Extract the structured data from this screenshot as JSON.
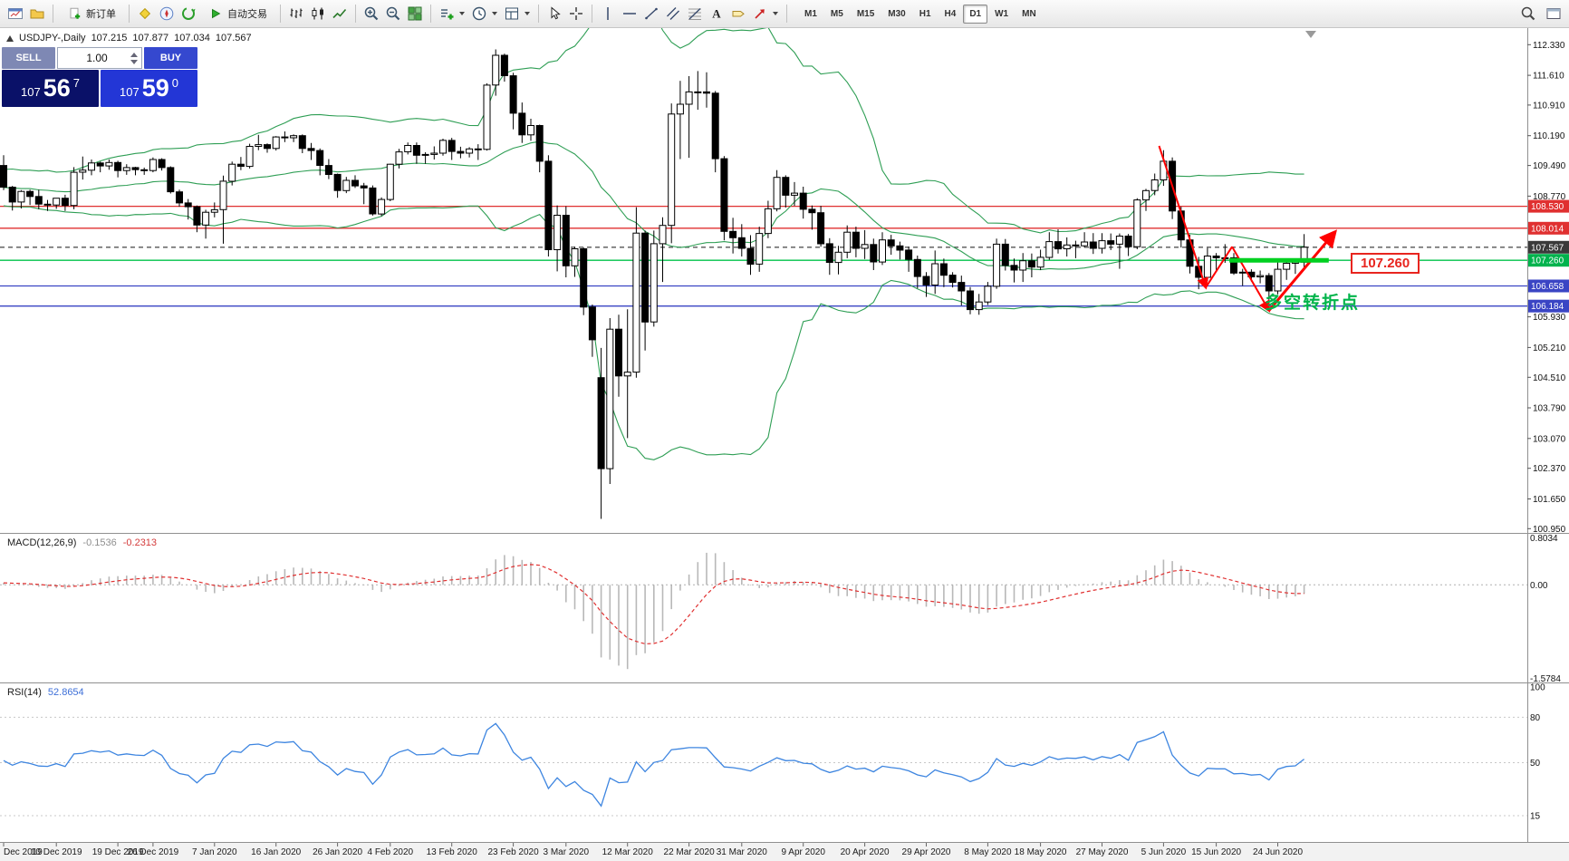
{
  "toolbar": {
    "new_order_label": "新订单",
    "auto_trading_label": "自动交易",
    "timeframes": [
      "M1",
      "M5",
      "M15",
      "M30",
      "H1",
      "H4",
      "D1",
      "W1",
      "MN"
    ],
    "active_timeframe": "D1"
  },
  "chart_header": {
    "symbol_period": "USDJPY-,Daily",
    "open": "107.215",
    "high": "107.877",
    "low": "107.034",
    "close": "107.567"
  },
  "trade_panel": {
    "sell_label": "SELL",
    "buy_label": "BUY",
    "volume": "1.00",
    "sell_price": {
      "small": "107",
      "big": "56",
      "sup": "7"
    },
    "buy_price": {
      "small": "107",
      "big": "59",
      "sup": "0"
    },
    "colors": {
      "sell_button": "#7e88b4",
      "buy_button": "#3548cf",
      "sell_panel": "#0a1168",
      "buy_panel": "#2336d6"
    }
  },
  "price_scale": {
    "ticks": [
      "112.330",
      "111.610",
      "110.910",
      "110.190",
      "109.490",
      "108.770",
      "105.930",
      "105.210",
      "104.510",
      "103.790",
      "103.070",
      "102.370",
      "101.650",
      "100.950"
    ],
    "level_labels": [
      {
        "text": "108.530",
        "price": 108.53,
        "bg": "#e03030"
      },
      {
        "text": "108.014",
        "price": 108.014,
        "bg": "#e03030"
      },
      {
        "text": "107.567",
        "price": 107.567,
        "bg": "#3a3a3a"
      },
      {
        "text": "107.260",
        "price": 107.26,
        "bg": "#00b34d"
      },
      {
        "text": "106.658",
        "price": 106.658,
        "bg": "#3a45c4"
      },
      {
        "text": "106.184",
        "price": 106.184,
        "bg": "#3a45c4"
      }
    ]
  },
  "chart_data": {
    "type": "candlestick",
    "symbol": "USDJPY",
    "period": "Daily",
    "ylim": [
      100.85,
      112.72
    ],
    "ohlc": [
      [
        109.49,
        109.73,
        108.91,
        108.98
      ],
      [
        108.98,
        109.01,
        108.43,
        108.63
      ],
      [
        108.63,
        108.91,
        108.48,
        108.88
      ],
      [
        108.88,
        108.92,
        108.56,
        108.76
      ],
      [
        108.76,
        108.92,
        108.46,
        108.58
      ],
      [
        108.58,
        108.68,
        108.42,
        108.56
      ],
      [
        108.56,
        108.72,
        108.47,
        108.72
      ],
      [
        108.72,
        108.8,
        108.42,
        108.55
      ],
      [
        108.55,
        109.45,
        108.46,
        109.33
      ],
      [
        109.33,
        109.7,
        109.16,
        109.38
      ],
      [
        109.38,
        109.63,
        109.26,
        109.55
      ],
      [
        109.55,
        109.58,
        109.33,
        109.48
      ],
      [
        109.48,
        109.63,
        109.39,
        109.56
      ],
      [
        109.56,
        109.6,
        109.21,
        109.37
      ],
      [
        109.37,
        109.52,
        109.27,
        109.44
      ],
      [
        109.44,
        109.46,
        109.26,
        109.39
      ],
      [
        109.39,
        109.44,
        109.27,
        109.37
      ],
      [
        109.37,
        109.68,
        109.33,
        109.63
      ],
      [
        109.63,
        109.66,
        109.37,
        109.44
      ],
      [
        109.44,
        109.47,
        108.83,
        108.87
      ],
      [
        108.87,
        108.92,
        108.52,
        108.61
      ],
      [
        108.61,
        108.7,
        108.22,
        108.52
      ],
      [
        108.52,
        108.55,
        107.92,
        108.09
      ],
      [
        108.09,
        108.45,
        107.77,
        108.39
      ],
      [
        108.39,
        108.62,
        108.27,
        108.45
      ],
      [
        108.45,
        109.25,
        107.65,
        109.12
      ],
      [
        109.12,
        109.58,
        109.02,
        109.52
      ],
      [
        109.52,
        109.69,
        109.38,
        109.47
      ],
      [
        109.47,
        110.0,
        109.42,
        109.94
      ],
      [
        109.94,
        110.21,
        109.85,
        109.98
      ],
      [
        109.98,
        110.01,
        109.79,
        109.89
      ],
      [
        109.89,
        110.18,
        109.84,
        110.16
      ],
      [
        110.16,
        110.29,
        110.04,
        110.14
      ],
      [
        110.14,
        110.22,
        110.04,
        110.19
      ],
      [
        110.19,
        110.22,
        109.78,
        109.89
      ],
      [
        109.89,
        110.02,
        109.62,
        109.84
      ],
      [
        109.84,
        109.89,
        109.26,
        109.49
      ],
      [
        109.49,
        109.64,
        109.17,
        109.28
      ],
      [
        109.28,
        109.3,
        108.73,
        108.9
      ],
      [
        108.9,
        109.22,
        108.84,
        109.14
      ],
      [
        109.14,
        109.26,
        108.96,
        109.01
      ],
      [
        109.01,
        109.08,
        108.58,
        108.96
      ],
      [
        108.96,
        109.02,
        108.31,
        108.35
      ],
      [
        108.35,
        108.74,
        108.3,
        108.69
      ],
      [
        108.69,
        109.53,
        108.65,
        109.52
      ],
      [
        109.52,
        109.88,
        109.42,
        109.81
      ],
      [
        109.81,
        110.03,
        109.75,
        109.96
      ],
      [
        109.96,
        110.03,
        109.53,
        109.73
      ],
      [
        109.73,
        109.8,
        109.53,
        109.75
      ],
      [
        109.75,
        109.94,
        109.63,
        109.78
      ],
      [
        109.78,
        110.12,
        109.72,
        110.08
      ],
      [
        110.08,
        110.14,
        109.62,
        109.82
      ],
      [
        109.82,
        109.93,
        109.66,
        109.78
      ],
      [
        109.78,
        109.92,
        109.68,
        109.88
      ],
      [
        109.88,
        109.99,
        109.62,
        109.87
      ],
      [
        109.87,
        111.42,
        109.84,
        111.38
      ],
      [
        111.38,
        112.22,
        111.13,
        112.08
      ],
      [
        112.08,
        112.12,
        111.46,
        111.6
      ],
      [
        111.6,
        111.67,
        110.34,
        110.72
      ],
      [
        110.72,
        110.97,
        110.02,
        110.21
      ],
      [
        110.21,
        110.59,
        110.07,
        110.43
      ],
      [
        110.43,
        110.45,
        109.33,
        109.59
      ],
      [
        109.59,
        109.73,
        107.35,
        107.51
      ],
      [
        107.51,
        108.55,
        107.0,
        108.32
      ],
      [
        108.32,
        108.53,
        106.86,
        107.13
      ],
      [
        107.13,
        107.58,
        106.87,
        107.53
      ],
      [
        107.53,
        107.56,
        105.97,
        106.16
      ],
      [
        106.16,
        106.22,
        104.99,
        105.39
      ],
      [
        104.5,
        105.2,
        101.18,
        102.36
      ],
      [
        102.36,
        105.9,
        102.0,
        105.64
      ],
      [
        105.64,
        105.98,
        104.05,
        104.54
      ],
      [
        104.54,
        106.11,
        103.08,
        104.63
      ],
      [
        104.63,
        108.51,
        104.5,
        107.9
      ],
      [
        107.9,
        107.96,
        105.14,
        105.81
      ],
      [
        105.81,
        107.96,
        105.7,
        107.65
      ],
      [
        107.65,
        108.27,
        106.75,
        108.08
      ],
      [
        108.08,
        110.95,
        107.66,
        110.7
      ],
      [
        110.7,
        111.48,
        109.64,
        110.93
      ],
      [
        110.93,
        111.59,
        109.67,
        111.22
      ],
      [
        111.22,
        111.71,
        110.8,
        111.22
      ],
      [
        111.22,
        111.68,
        110.85,
        111.19
      ],
      [
        111.19,
        111.24,
        109.33,
        109.65
      ],
      [
        109.65,
        109.71,
        107.73,
        107.94
      ],
      [
        107.94,
        108.26,
        107.42,
        107.79
      ],
      [
        107.79,
        108.11,
        107.35,
        107.54
      ],
      [
        107.54,
        107.85,
        106.92,
        107.17
      ],
      [
        107.17,
        108.05,
        106.99,
        107.89
      ],
      [
        107.89,
        108.66,
        107.78,
        108.47
      ],
      [
        108.47,
        109.38,
        108.41,
        109.21
      ],
      [
        109.21,
        109.26,
        108.5,
        108.79
      ],
      [
        108.79,
        109.1,
        108.54,
        108.84
      ],
      [
        108.84,
        108.99,
        108.24,
        108.46
      ],
      [
        108.46,
        108.55,
        107.98,
        108.38
      ],
      [
        108.38,
        108.54,
        107.58,
        107.65
      ],
      [
        107.65,
        107.78,
        106.92,
        107.21
      ],
      [
        107.21,
        107.6,
        106.93,
        107.45
      ],
      [
        107.45,
        108.08,
        107.31,
        107.92
      ],
      [
        107.92,
        108.05,
        107.33,
        107.54
      ],
      [
        107.54,
        107.97,
        107.29,
        107.63
      ],
      [
        107.63,
        107.77,
        107.03,
        107.22
      ],
      [
        107.22,
        107.92,
        107.15,
        107.74
      ],
      [
        107.74,
        107.86,
        107.39,
        107.6
      ],
      [
        107.6,
        107.7,
        107.28,
        107.5
      ],
      [
        107.5,
        107.58,
        106.99,
        107.28
      ],
      [
        107.28,
        107.37,
        106.6,
        106.88
      ],
      [
        106.88,
        106.98,
        106.4,
        106.68
      ],
      [
        106.68,
        107.49,
        106.47,
        107.18
      ],
      [
        107.18,
        107.3,
        106.63,
        106.91
      ],
      [
        106.91,
        106.98,
        106.62,
        106.74
      ],
      [
        106.74,
        106.9,
        106.2,
        106.54
      ],
      [
        106.54,
        106.63,
        105.99,
        106.1
      ],
      [
        106.1,
        106.47,
        105.98,
        106.28
      ],
      [
        106.28,
        106.75,
        106.21,
        106.65
      ],
      [
        106.65,
        107.77,
        106.59,
        107.64
      ],
      [
        107.64,
        107.76,
        107.02,
        107.14
      ],
      [
        107.14,
        107.3,
        106.74,
        107.03
      ],
      [
        107.03,
        107.43,
        106.75,
        107.25
      ],
      [
        107.25,
        107.42,
        106.86,
        107.1
      ],
      [
        107.1,
        107.51,
        107.03,
        107.33
      ],
      [
        107.33,
        107.92,
        107.27,
        107.7
      ],
      [
        107.7,
        107.99,
        107.42,
        107.53
      ],
      [
        107.53,
        107.8,
        107.35,
        107.62
      ],
      [
        107.62,
        107.72,
        107.31,
        107.6
      ],
      [
        107.6,
        107.92,
        107.56,
        107.69
      ],
      [
        107.69,
        107.9,
        107.41,
        107.54
      ],
      [
        107.54,
        107.9,
        107.42,
        107.72
      ],
      [
        107.72,
        107.89,
        107.5,
        107.64
      ],
      [
        107.64,
        107.89,
        107.06,
        107.83
      ],
      [
        107.83,
        107.88,
        107.36,
        107.58
      ],
      [
        107.58,
        108.72,
        107.52,
        108.68
      ],
      [
        108.68,
        108.94,
        108.42,
        108.9
      ],
      [
        108.9,
        109.3,
        108.79,
        109.15
      ],
      [
        109.15,
        109.85,
        109.01,
        109.59
      ],
      [
        109.59,
        109.68,
        108.23,
        108.42
      ],
      [
        108.42,
        108.52,
        107.56,
        107.74
      ],
      [
        107.74,
        107.86,
        106.95,
        107.12
      ],
      [
        107.12,
        107.34,
        106.58,
        106.86
      ],
      [
        106.86,
        107.55,
        106.77,
        107.36
      ],
      [
        107.36,
        107.43,
        106.99,
        107.32
      ],
      [
        107.32,
        107.64,
        107.2,
        107.32
      ],
      [
        107.32,
        107.43,
        106.92,
        106.96
      ],
      [
        106.96,
        107.06,
        106.66,
        106.98
      ],
      [
        106.98,
        107.05,
        106.76,
        106.87
      ],
      [
        106.87,
        107.02,
        106.72,
        106.9
      ],
      [
        106.9,
        106.96,
        106.07,
        106.54
      ],
      [
        106.54,
        107.23,
        106.46,
        107.05
      ],
      [
        107.05,
        107.27,
        106.8,
        107.19
      ],
      [
        107.19,
        107.3,
        106.94,
        107.22
      ],
      [
        107.215,
        107.877,
        107.034,
        107.567
      ]
    ],
    "x_labels": [
      {
        "t": "Dec 2019",
        "i": 0
      },
      {
        "t": "10 Dec 2019",
        "i": 6
      },
      {
        "t": "19 Dec 2019",
        "i": 13
      },
      {
        "t": "26 Dec 2019",
        "i": 17
      },
      {
        "t": "7 Jan 2020",
        "i": 24
      },
      {
        "t": "16 Jan 2020",
        "i": 31
      },
      {
        "t": "26 Jan 2020",
        "i": 38
      },
      {
        "t": "4 Feb 2020",
        "i": 44
      },
      {
        "t": "13 Feb 2020",
        "i": 51
      },
      {
        "t": "23 Feb 2020",
        "i": 58
      },
      {
        "t": "3 Mar 2020",
        "i": 64
      },
      {
        "t": "12 Mar 2020",
        "i": 71
      },
      {
        "t": "22 Mar 2020",
        "i": 78
      },
      {
        "t": "31 Mar 2020",
        "i": 84
      },
      {
        "t": "9 Apr 2020",
        "i": 91
      },
      {
        "t": "20 Apr 2020",
        "i": 98
      },
      {
        "t": "29 Apr 2020",
        "i": 105
      },
      {
        "t": "8 May 2020",
        "i": 112
      },
      {
        "t": "18 May 2020",
        "i": 118
      },
      {
        "t": "27 May 2020",
        "i": 125
      },
      {
        "t": "5 Jun 2020",
        "i": 132
      },
      {
        "t": "15 Jun 2020",
        "i": 138
      },
      {
        "t": "24 Jun 2020",
        "i": 145
      }
    ],
    "levels": [
      {
        "text": "108.530",
        "price": 108.53,
        "color": "#e03030",
        "style": "solid"
      },
      {
        "text": "108.014",
        "price": 108.014,
        "color": "#e03030",
        "style": "solid"
      },
      {
        "text": "107.567",
        "price": 107.567,
        "color": "#555555",
        "style": "dash"
      },
      {
        "text": "107.260",
        "price": 107.26,
        "color": "#00c24a",
        "style": "solid"
      },
      {
        "text": "106.658",
        "price": 106.658,
        "color": "#3a45c4",
        "style": "solid"
      },
      {
        "text": "106.184",
        "price": 106.184,
        "color": "#3a45c4",
        "style": "solid"
      }
    ],
    "indicators": {
      "bollinger": {
        "period": 20,
        "deviation": 2,
        "color": "#2e9e54"
      },
      "macd": {
        "label": "MACD(12,26,9)",
        "value": "-0.1536",
        "signal_value": "-0.2313",
        "scale_max": "0.8034",
        "scale_zero": "0.00",
        "scale_min": "-1.5784",
        "hist_color": "#b8b8b8",
        "signal_color": "#e03030"
      },
      "rsi": {
        "label": "RSI(14)",
        "value": "52.8654",
        "color": "#3d85e0",
        "scale": [
          "100",
          "80",
          "50",
          "15"
        ],
        "levels": [
          80,
          50,
          15
        ]
      }
    },
    "annotations": {
      "zigzag": {
        "color": "#ff0000",
        "points": [
          {
            "i": 131.5,
            "p": 109.95
          },
          {
            "i": 136.8,
            "p": 106.62
          },
          {
            "i": 139.8,
            "p": 107.58
          },
          {
            "i": 144,
            "p": 106.08
          },
          {
            "i": 151.5,
            "p": 107.92
          }
        ],
        "arrow_segments": [
          0,
          2,
          3
        ]
      },
      "support_segment": {
        "price": 107.26,
        "i1": 139.5,
        "i2": 150.8,
        "color": "#00d020",
        "width": 5
      },
      "price_tag": {
        "text": "107.260",
        "i": 153.3,
        "p": 107.21,
        "color": "#e8251f"
      },
      "note_text": {
        "text": "多空转折点",
        "i": 143.5,
        "p": 106.32,
        "color": "#00b44a"
      }
    }
  }
}
